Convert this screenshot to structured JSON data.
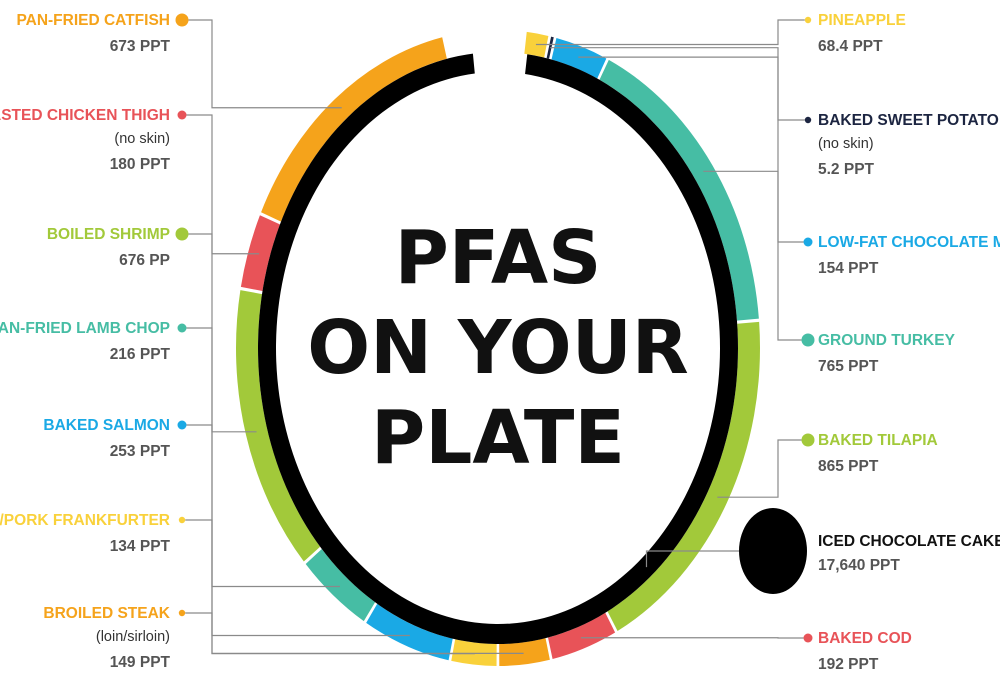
{
  "title": {
    "lines": [
      "PFAS",
      "ON YOUR",
      "PLATE"
    ]
  },
  "chart_data": {
    "type": "pie",
    "title": "PFAS ON YOUR PLATE",
    "unit": "PPT",
    "items": [
      {
        "name": "PINEAPPLE",
        "sub": "",
        "label": "68.4 PPT",
        "value": 68.4,
        "color": "#f9d13b"
      },
      {
        "name": "BAKED SWEET POTATO",
        "sub": "(no skin)",
        "label": "5.2 PPT",
        "value": 5.2,
        "color": "#1c2541"
      },
      {
        "name": "LOW-FAT CHOCOLATE MILK",
        "sub": "",
        "label": "154 PPT",
        "value": 154,
        "color": "#1aa9e5"
      },
      {
        "name": "GROUND TURKEY",
        "sub": "",
        "label": "765 PPT",
        "value": 765,
        "color": "#46bda4"
      },
      {
        "name": "BAKED TILAPIA",
        "sub": "",
        "label": "865 PPT",
        "value": 865,
        "color": "#a2c93a"
      },
      {
        "name": "BAKED COD",
        "sub": "",
        "label": "192 PPT",
        "value": 192,
        "color": "#e85358"
      },
      {
        "name": "BROILED STEAK",
        "sub": "(loin/sirloin)",
        "label": "149 PPT",
        "value": 149,
        "color": "#f5a31b"
      },
      {
        "name": "BEEF/PORK FRANKFURTER",
        "sub": "",
        "label": "134 PPT",
        "value": 134,
        "color": "#f9d13b"
      },
      {
        "name": "BAKED SALMON",
        "sub": "",
        "label": "253 PPT",
        "value": 253,
        "color": "#1aa9e5"
      },
      {
        "name": "PAN-FRIED LAMB CHOP",
        "sub": "",
        "label": "216 PPT",
        "value": 216,
        "color": "#46bda4"
      },
      {
        "name": "BOILED SHRIMP",
        "sub": "",
        "label": "676 PP",
        "value": 676,
        "color": "#a2c93a"
      },
      {
        "name": "ROASTED CHICKEN THIGH",
        "sub": "(no skin)",
        "label": "180 PPT",
        "value": 180,
        "color": "#e85358"
      },
      {
        "name": "PAN-FRIED CATFISH",
        "sub": "",
        "label": "673 PPT",
        "value": 673,
        "color": "#f5a31b"
      },
      {
        "name": "ICED CHOCOLATE CAKE",
        "sub": "",
        "label": "17,640 PPT",
        "value": 17640,
        "color": "#000000"
      }
    ]
  }
}
